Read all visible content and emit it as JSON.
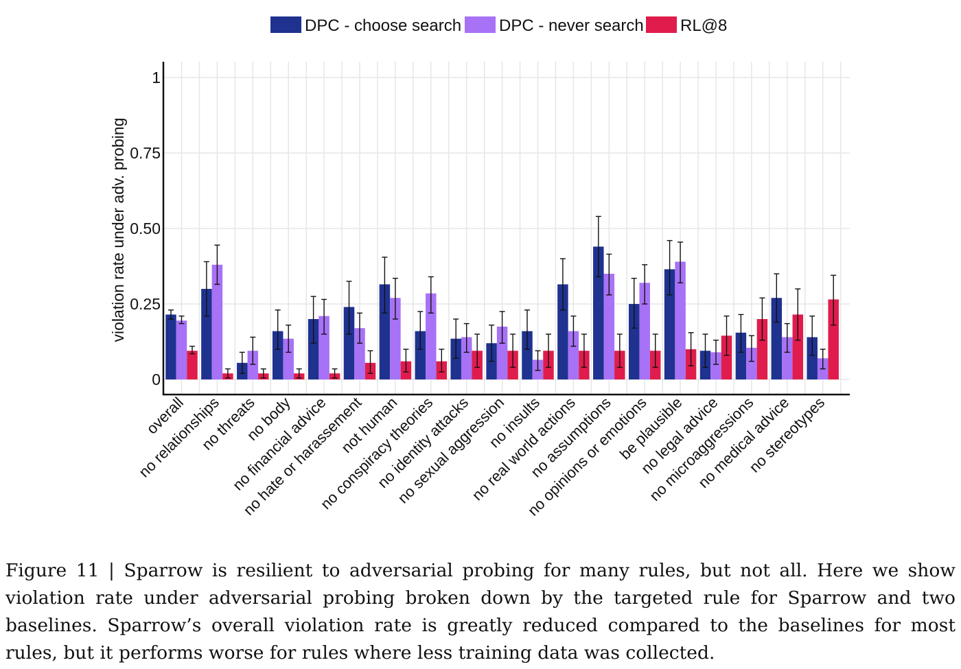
{
  "chart_data": {
    "type": "bar",
    "ylabel": "violation rate under adv. probing",
    "ylim": [
      0,
      1
    ],
    "yticks": [
      0,
      0.25,
      0.5,
      0.75,
      1
    ],
    "ytick_labels": [
      "0",
      "0.25",
      "0.50",
      "0.75",
      "1"
    ],
    "grid": true,
    "legend_position": "top-center",
    "categories": [
      "overall",
      "no relationships",
      "no threats",
      "no body",
      "no financial advice",
      "no hate or harassement",
      "not human",
      "no conspiracy theories",
      "no identity attacks",
      "no sexual aggression",
      "no insults",
      "no real world actions",
      "no assumptions",
      "no opinions or emotions",
      "be plausible",
      "no legal advice",
      "no microaggressions",
      "no medical advice",
      "no stereotypes"
    ],
    "series": [
      {
        "name": "DPC - choose search",
        "color": "#1f3290",
        "values": [
          0.215,
          0.3,
          0.055,
          0.16,
          0.2,
          0.24,
          0.315,
          0.16,
          0.135,
          0.12,
          0.16,
          0.315,
          0.44,
          0.25,
          0.365,
          0.095,
          0.155,
          0.27,
          0.14
        ],
        "err_low": [
          0.2,
          0.21,
          0.02,
          0.1,
          0.12,
          0.15,
          0.22,
          0.1,
          0.07,
          0.06,
          0.1,
          0.23,
          0.34,
          0.17,
          0.28,
          0.04,
          0.09,
          0.19,
          0.08
        ],
        "err_high": [
          0.23,
          0.39,
          0.09,
          0.23,
          0.275,
          0.325,
          0.405,
          0.225,
          0.2,
          0.18,
          0.23,
          0.4,
          0.54,
          0.335,
          0.46,
          0.15,
          0.215,
          0.35,
          0.21
        ]
      },
      {
        "name": "DPC - never search",
        "color": "#a772f5",
        "values": [
          0.195,
          0.38,
          0.095,
          0.135,
          0.21,
          0.17,
          0.27,
          0.285,
          0.14,
          0.175,
          0.065,
          0.16,
          0.35,
          0.32,
          0.39,
          0.09,
          0.105,
          0.14,
          0.07
        ],
        "err_low": [
          0.185,
          0.315,
          0.05,
          0.09,
          0.15,
          0.12,
          0.2,
          0.22,
          0.09,
          0.12,
          0.03,
          0.11,
          0.28,
          0.25,
          0.32,
          0.05,
          0.06,
          0.09,
          0.035
        ],
        "err_high": [
          0.21,
          0.445,
          0.14,
          0.18,
          0.265,
          0.22,
          0.335,
          0.34,
          0.185,
          0.225,
          0.095,
          0.21,
          0.415,
          0.38,
          0.455,
          0.13,
          0.145,
          0.185,
          0.1
        ]
      },
      {
        "name": "RL@8",
        "color": "#e01c4c",
        "values": [
          0.095,
          0.02,
          0.02,
          0.02,
          0.02,
          0.055,
          0.06,
          0.06,
          0.095,
          0.095,
          0.095,
          0.095,
          0.095,
          0.095,
          0.1,
          0.145,
          0.2,
          0.215,
          0.265
        ],
        "err_low": [
          0.085,
          0.005,
          0.005,
          0.005,
          0.005,
          0.02,
          0.025,
          0.025,
          0.04,
          0.04,
          0.04,
          0.04,
          0.04,
          0.04,
          0.045,
          0.08,
          0.13,
          0.13,
          0.18
        ],
        "err_high": [
          0.11,
          0.035,
          0.035,
          0.035,
          0.035,
          0.095,
          0.1,
          0.1,
          0.15,
          0.15,
          0.15,
          0.15,
          0.15,
          0.15,
          0.155,
          0.21,
          0.27,
          0.3,
          0.345
        ]
      }
    ]
  },
  "caption": {
    "text": "Figure 11 | Sparrow is resilient to adversarial probing for many rules, but not all. Here we show violation rate under adversarial probing broken down by the targeted rule for Sparrow and two baselines. Sparrow’s overall violation rate is greatly reduced compared to the baselines for most rules, but it performs worse for rules where less training data was collected."
  }
}
